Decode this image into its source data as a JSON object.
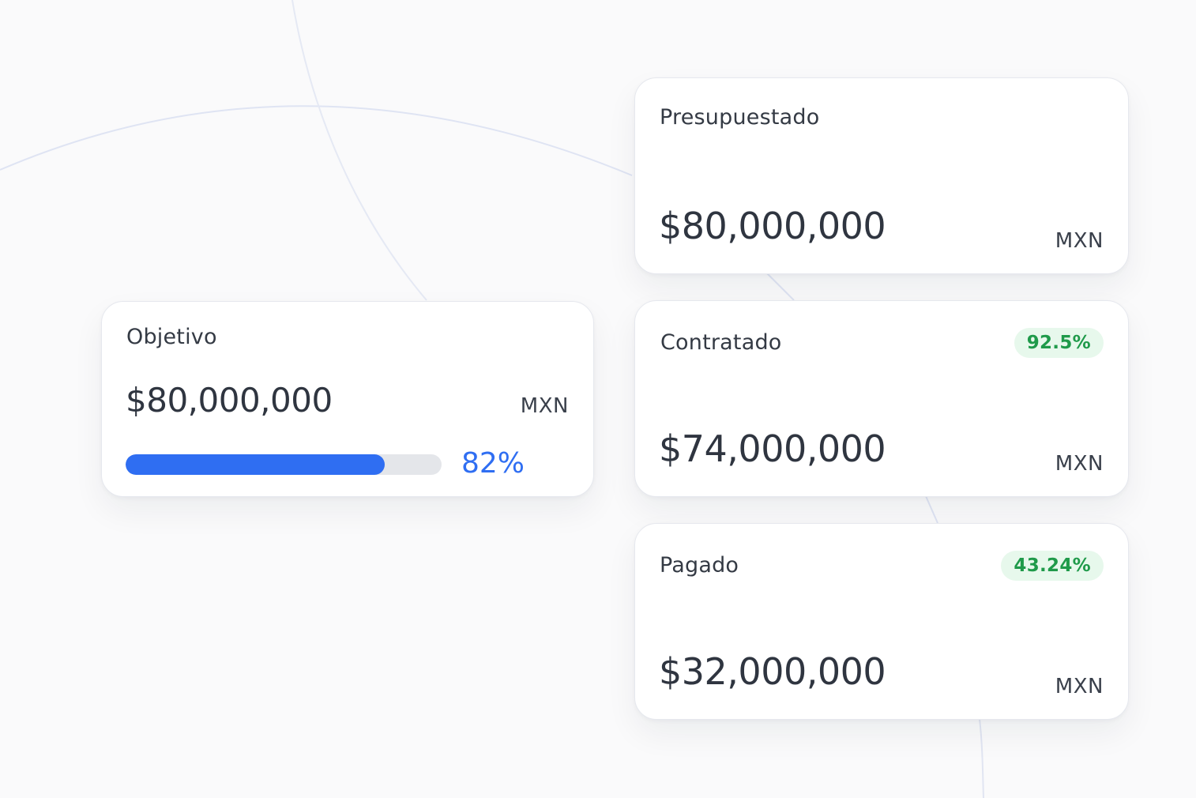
{
  "objetivo": {
    "title": "Objetivo",
    "amount": "$80,000,000",
    "currency": "MXN",
    "progress_label": "82%",
    "progress_value": 0.82,
    "progress_color": "#2f6ef2"
  },
  "presupuestado": {
    "title": "Presupuestado",
    "amount": "$80,000,000",
    "currency": "MXN"
  },
  "contratado": {
    "title": "Contratado",
    "badge": "92.5%",
    "amount": "$74,000,000",
    "currency": "MXN"
  },
  "pagado": {
    "title": "Pagado",
    "badge": "43.24%",
    "amount": "$32,000,000",
    "currency": "MXN"
  },
  "colors": {
    "badge_bg": "#e7f8ec",
    "badge_text": "#1f9a4a",
    "card_bg": "#ffffff",
    "page_bg": "#fafafb"
  }
}
